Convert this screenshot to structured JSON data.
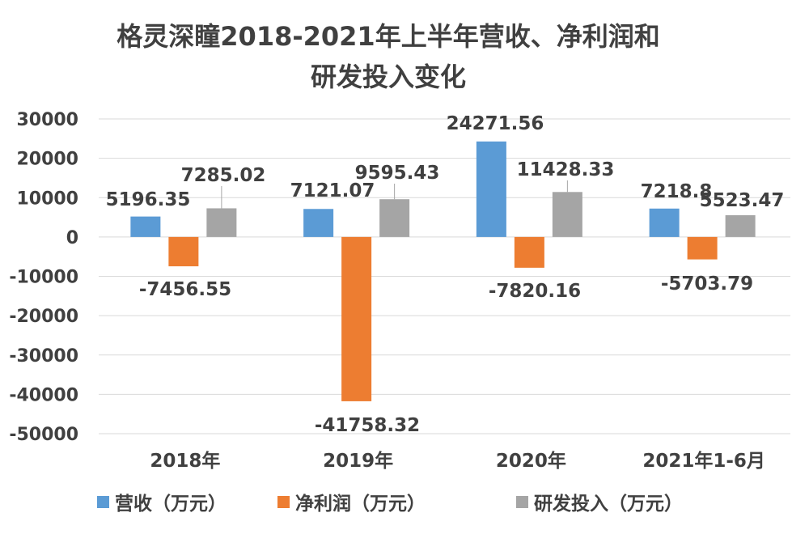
{
  "chart_data": {
    "type": "bar",
    "title_lines": [
      "格灵深瞳2018-2021年上半年营收、净利润和",
      "研发投入变化"
    ],
    "categories": [
      "2018年",
      "2019年",
      "2020年",
      "2021年1-6月"
    ],
    "series": [
      {
        "name": "营收（万元）",
        "color": "#5B9BD5",
        "values": [
          5196.35,
          7121.07,
          24271.56,
          7218.8
        ],
        "labels": [
          "5196.35",
          "7121.07",
          "24271.56",
          "7218.8"
        ]
      },
      {
        "name": "净利润（万元）",
        "color": "#ED7D31",
        "values": [
          -7456.55,
          -41758.32,
          -7820.16,
          -5703.79
        ],
        "labels": [
          "-7456.55",
          "-41758.32",
          "-7820.16",
          "-5703.79"
        ]
      },
      {
        "name": "研发投入（万元）",
        "color": "#A5A5A5",
        "values": [
          7285.02,
          9595.43,
          11428.33,
          5523.47
        ],
        "labels": [
          "7285.02",
          "9595.43",
          "11428.33",
          "5523.47"
        ]
      }
    ],
    "yticks": [
      "30000",
      "20000",
      "10000",
      "0",
      "-10000",
      "-20000",
      "-30000",
      "-40000",
      "-50000"
    ],
    "ylim": [
      -50000,
      30000
    ],
    "grid": true,
    "legend_position": "bottom"
  }
}
